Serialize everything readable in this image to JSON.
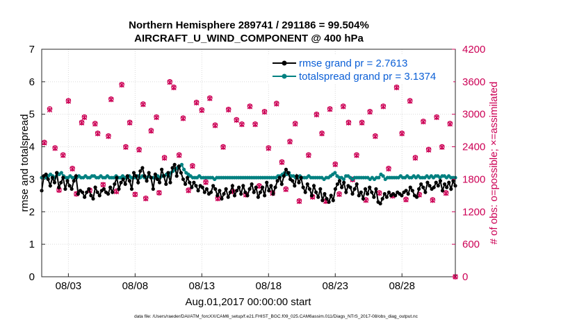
{
  "chart_data": {
    "type": "line",
    "title_line1": "Northern Hemisphere 289741 / 291186 = 99.504%",
    "title_line2": "AIRCRAFT_U_WIND_COMPONENT @ 400 hPa",
    "xlabel": "Aug.01,2017 00:00:00 start",
    "ylabel_left": "rmse and totalspread",
    "ylabel_right": "# of obs: o=possible; ×=assimilated",
    "footnote": "data file: /Users/raeder/DAI/ATM_forcXX/CAM6_setup/f.e21.FHIST_BGC.f09_025.CAM6assim.011/Diags_NTrS_2017-08/obs_diag_output.nc",
    "x_tick_labels": [
      "08/03",
      "08/08",
      "08/13",
      "08/18",
      "08/23",
      "08/28"
    ],
    "x_tick_days": [
      3,
      8,
      13,
      18,
      23,
      28
    ],
    "xlim_days": [
      1,
      32
    ],
    "ylim_left": [
      0,
      7
    ],
    "y_ticks_left": [
      "0",
      "1",
      "2",
      "3",
      "4",
      "5",
      "6",
      "7"
    ],
    "ylim_right": [
      0,
      4200
    ],
    "y_ticks_right": [
      "0",
      "600",
      "1200",
      "1800",
      "2400",
      "3000",
      "3600",
      "4200"
    ],
    "legend": {
      "rmse": "rmse grand pr = 2.7613",
      "spread": "totalspread grand pr = 3.1374"
    },
    "colors": {
      "rmse": "#000000",
      "spread": "#008080",
      "obs": "#cc0055",
      "right_axis": "#cc0055",
      "legend_text": "#0b5fd6"
    },
    "series": [
      {
        "name": "rmse",
        "values": [
          2.65,
          3.1,
          3.15,
          3.0,
          2.8,
          3.05,
          2.9,
          3.2,
          2.75,
          2.9,
          3.05,
          2.7,
          2.95,
          2.8,
          2.7,
          2.95,
          3.1,
          2.55,
          2.65,
          2.6,
          2.45,
          2.6,
          2.7,
          2.5,
          2.4,
          2.75,
          2.6,
          2.5,
          2.65,
          2.7,
          2.6,
          2.55,
          2.75,
          2.6,
          2.85,
          3.05,
          2.7,
          2.9,
          3.0,
          2.85,
          3.1,
          2.95,
          2.7,
          3.2,
          3.1,
          2.9,
          3.25,
          3.35,
          3.1,
          2.95,
          3.2,
          3.05,
          2.7,
          3.15,
          3.0,
          2.9,
          3.3,
          3.1,
          2.85,
          3.2,
          2.9,
          3.35,
          3.45,
          3.1,
          3.4,
          3.2,
          3.0,
          2.85,
          3.05,
          2.9,
          2.75,
          2.9,
          2.8,
          2.65,
          2.8,
          2.75,
          2.6,
          2.7,
          2.55,
          2.6,
          2.8,
          2.7,
          2.5,
          2.65,
          2.4,
          2.55,
          2.7,
          2.45,
          2.6,
          2.8,
          2.5,
          2.65,
          2.75,
          2.55,
          2.8,
          2.6,
          2.5,
          2.7,
          2.85,
          2.6,
          2.75,
          2.45,
          2.6,
          2.75,
          2.5,
          2.9,
          2.65,
          2.8,
          2.55,
          2.75,
          2.95,
          3.05,
          2.85,
          3.1,
          3.3,
          3.2,
          3.0,
          2.95,
          2.8,
          3.1,
          2.9,
          3.05,
          2.75,
          2.6,
          2.85,
          2.7,
          2.5,
          2.8,
          2.6,
          2.45,
          2.7,
          2.35,
          2.55,
          2.4,
          2.3,
          2.5,
          2.35,
          2.7,
          2.85,
          2.95,
          2.75,
          2.9,
          2.6,
          2.8,
          2.75,
          2.55,
          2.7,
          2.85,
          2.5,
          2.6,
          2.4,
          2.7,
          2.55,
          2.75,
          2.6,
          2.45,
          2.7,
          2.3,
          2.25,
          2.4,
          2.55,
          2.45,
          2.6,
          2.5,
          2.55,
          2.5,
          2.6,
          2.55,
          2.5,
          2.6,
          2.65,
          2.55,
          2.75,
          2.65,
          2.5,
          2.45,
          2.7,
          2.85,
          2.75,
          2.6,
          2.9,
          2.8,
          2.7,
          2.75,
          2.9,
          2.8,
          2.95,
          2.65,
          2.85,
          2.75,
          2.9,
          2.7,
          2.95,
          2.8
        ]
      },
      {
        "name": "totalspread",
        "values": [
          3.05,
          3.1,
          3.05,
          3.1,
          3.15,
          3.1,
          3.05,
          3.2,
          3.15,
          3.2,
          3.1,
          3.05,
          3.05,
          3.1,
          3.05,
          3.05,
          3.05,
          3.1,
          3.05,
          3.05,
          3.1,
          3.05,
          3.05,
          3.1,
          3.1,
          3.05,
          3.05,
          3.1,
          3.05,
          3.05,
          3.1,
          3.05,
          3.05,
          3.05,
          3.1,
          3.05,
          3.05,
          3.1,
          3.05,
          3.05,
          3.1,
          3.05,
          3.05,
          3.05,
          3.1,
          3.05,
          3.1,
          3.05,
          3.05,
          3.1,
          3.05,
          3.05,
          3.05,
          3.1,
          3.05,
          3.1,
          3.1,
          3.15,
          3.1,
          3.2,
          3.25,
          3.3,
          3.35,
          3.4,
          3.45,
          3.3,
          3.2,
          3.15,
          3.1,
          3.05,
          3.05,
          3.05,
          3.1,
          3.05,
          3.05,
          3.05,
          3.05,
          3.05,
          3.05,
          3.0,
          3.05,
          3.05,
          3.05,
          3.05,
          3.05,
          3.05,
          3.05,
          3.05,
          3.05,
          3.05,
          3.05,
          3.05,
          3.05,
          3.05,
          3.05,
          3.05,
          3.05,
          3.05,
          3.05,
          3.05,
          3.05,
          3.05,
          3.05,
          3.05,
          3.05,
          3.05,
          3.05,
          3.05,
          3.1,
          3.1,
          3.15,
          3.2,
          3.15,
          3.2,
          3.1,
          3.1,
          3.05,
          3.05,
          3.1,
          3.05,
          3.05,
          3.05,
          3.1,
          3.05,
          3.05,
          3.05,
          3.05,
          3.05,
          3.05,
          3.0,
          3.05,
          3.05,
          3.1,
          3.15,
          3.2,
          3.1,
          3.05,
          3.05,
          3.0,
          3.1,
          3.1,
          3.05,
          3.0,
          3.05,
          3.05,
          3.05,
          3.05,
          3.05,
          3.05,
          3.05,
          3.0,
          3.05,
          3.0,
          3.05,
          3.05,
          3.15,
          3.1,
          3.0,
          3.05,
          3.05,
          3.05,
          3.05,
          3.05,
          3.05,
          3.1,
          3.05,
          3.05,
          3.1,
          3.05,
          3.05,
          3.1,
          3.05,
          3.1,
          3.05,
          3.05,
          3.05,
          3.1,
          3.05,
          3.1,
          3.05,
          3.1,
          3.1,
          3.05,
          3.1,
          3.1,
          3.05,
          3.1,
          3.05,
          3.05,
          3.05
        ]
      },
      {
        "name": "obs_possible",
        "points": [
          [
            1.2,
            2480
          ],
          [
            1.6,
            3100
          ],
          [
            2.0,
            2380
          ],
          [
            2.3,
            1600
          ],
          [
            2.6,
            2250
          ],
          [
            3.0,
            3250
          ],
          [
            3.3,
            2000
          ],
          [
            3.6,
            1530
          ],
          [
            4.0,
            2850
          ],
          [
            4.2,
            2950
          ],
          [
            4.6,
            1600
          ],
          [
            5.0,
            2830
          ],
          [
            5.2,
            2650
          ],
          [
            5.6,
            1700
          ],
          [
            6.0,
            2600
          ],
          [
            6.2,
            3280
          ],
          [
            6.6,
            1580
          ],
          [
            7.0,
            3550
          ],
          [
            7.3,
            2400
          ],
          [
            7.6,
            2850
          ],
          [
            8.0,
            1520
          ],
          [
            8.3,
            2350
          ],
          [
            8.6,
            3190
          ],
          [
            8.8,
            1450
          ],
          [
            9.2,
            2700
          ],
          [
            9.6,
            2950
          ],
          [
            9.8,
            1550
          ],
          [
            10.2,
            2200
          ],
          [
            10.6,
            3600
          ],
          [
            10.9,
            3500
          ],
          [
            11.3,
            2250
          ],
          [
            11.6,
            2930
          ],
          [
            12.0,
            1600
          ],
          [
            12.3,
            2050
          ],
          [
            12.6,
            3220
          ],
          [
            13.0,
            3080
          ],
          [
            13.3,
            1750
          ],
          [
            13.6,
            3300
          ],
          [
            14.0,
            2800
          ],
          [
            14.2,
            1450
          ],
          [
            14.6,
            2400
          ],
          [
            15.0,
            3090
          ],
          [
            15.3,
            1580
          ],
          [
            15.6,
            2900
          ],
          [
            16.0,
            2820
          ],
          [
            16.3,
            1520
          ],
          [
            16.6,
            3150
          ],
          [
            17.0,
            2820
          ],
          [
            17.3,
            1680
          ],
          [
            17.7,
            3050
          ],
          [
            18.0,
            2380
          ],
          [
            18.3,
            1550
          ],
          [
            18.6,
            3200
          ],
          [
            19.0,
            2120
          ],
          [
            19.3,
            1620
          ],
          [
            19.6,
            2500
          ],
          [
            20.0,
            2830
          ],
          [
            20.3,
            1400
          ],
          [
            20.6,
            3650
          ],
          [
            21.0,
            2250
          ],
          [
            21.3,
            1480
          ],
          [
            21.6,
            3000
          ],
          [
            22.0,
            2650
          ],
          [
            22.3,
            1400
          ],
          [
            22.6,
            3100
          ],
          [
            23.0,
            2080
          ],
          [
            23.3,
            1530
          ],
          [
            23.6,
            3150
          ],
          [
            24.0,
            2850
          ],
          [
            24.3,
            1800
          ],
          [
            24.6,
            2250
          ],
          [
            25.0,
            2850
          ],
          [
            25.3,
            1420
          ],
          [
            25.6,
            3050
          ],
          [
            26.0,
            2600
          ],
          [
            26.3,
            1550
          ],
          [
            26.6,
            3150
          ],
          [
            27.0,
            2000
          ],
          [
            27.3,
            1500
          ],
          [
            27.6,
            3500
          ],
          [
            28.0,
            2650
          ],
          [
            28.3,
            1430
          ],
          [
            28.6,
            3250
          ],
          [
            29.0,
            2200
          ],
          [
            29.3,
            1520
          ],
          [
            29.6,
            2870
          ],
          [
            30.0,
            2350
          ],
          [
            30.3,
            1420
          ],
          [
            30.6,
            2950
          ],
          [
            31.0,
            2400
          ],
          [
            31.3,
            1550
          ],
          [
            31.6,
            2830
          ],
          [
            32.0,
            0
          ]
        ]
      },
      {
        "name": "obs_assimilated",
        "points": [
          [
            1.2,
            2470
          ],
          [
            1.6,
            3080
          ],
          [
            2.0,
            2370
          ],
          [
            2.3,
            1600
          ],
          [
            2.6,
            2240
          ],
          [
            3.0,
            3240
          ],
          [
            3.3,
            1990
          ],
          [
            3.6,
            1530
          ],
          [
            4.0,
            2840
          ],
          [
            4.2,
            2940
          ],
          [
            4.6,
            1590
          ],
          [
            5.0,
            2820
          ],
          [
            5.2,
            2640
          ],
          [
            5.6,
            1700
          ],
          [
            6.0,
            2590
          ],
          [
            6.2,
            3270
          ],
          [
            6.6,
            1570
          ],
          [
            7.0,
            3540
          ],
          [
            7.3,
            2390
          ],
          [
            7.6,
            2840
          ],
          [
            8.0,
            1520
          ],
          [
            8.3,
            2340
          ],
          [
            8.6,
            3180
          ],
          [
            8.8,
            1440
          ],
          [
            9.2,
            2690
          ],
          [
            9.6,
            2940
          ],
          [
            9.8,
            1550
          ],
          [
            10.2,
            2190
          ],
          [
            10.6,
            3590
          ],
          [
            10.9,
            3490
          ],
          [
            11.3,
            2240
          ],
          [
            11.6,
            2920
          ],
          [
            12.0,
            1590
          ],
          [
            12.3,
            2040
          ],
          [
            12.6,
            3210
          ],
          [
            13.0,
            3070
          ],
          [
            13.3,
            1740
          ],
          [
            13.6,
            3290
          ],
          [
            14.0,
            2790
          ],
          [
            14.2,
            1440
          ],
          [
            14.6,
            2390
          ],
          [
            15.0,
            3080
          ],
          [
            15.3,
            1570
          ],
          [
            15.6,
            2890
          ],
          [
            16.0,
            2810
          ],
          [
            16.3,
            1510
          ],
          [
            16.6,
            3140
          ],
          [
            17.0,
            2810
          ],
          [
            17.3,
            1670
          ],
          [
            17.7,
            3040
          ],
          [
            18.0,
            2370
          ],
          [
            18.3,
            1540
          ],
          [
            18.6,
            3190
          ],
          [
            19.0,
            2110
          ],
          [
            19.3,
            1610
          ],
          [
            19.6,
            2490
          ],
          [
            20.0,
            2820
          ],
          [
            20.3,
            1390
          ],
          [
            20.6,
            3640
          ],
          [
            21.0,
            2240
          ],
          [
            21.3,
            1470
          ],
          [
            21.6,
            2990
          ],
          [
            22.0,
            2640
          ],
          [
            22.3,
            1390
          ],
          [
            22.6,
            3090
          ],
          [
            23.0,
            2070
          ],
          [
            23.3,
            1520
          ],
          [
            23.6,
            3140
          ],
          [
            24.0,
            2840
          ],
          [
            24.3,
            1790
          ],
          [
            24.6,
            2240
          ],
          [
            25.0,
            2840
          ],
          [
            25.3,
            1410
          ],
          [
            25.6,
            3040
          ],
          [
            26.0,
            2590
          ],
          [
            26.3,
            1540
          ],
          [
            26.6,
            3140
          ],
          [
            27.0,
            1990
          ],
          [
            27.3,
            1490
          ],
          [
            27.6,
            3490
          ],
          [
            28.0,
            2640
          ],
          [
            28.3,
            1420
          ],
          [
            28.6,
            3240
          ],
          [
            29.0,
            2190
          ],
          [
            29.3,
            1510
          ],
          [
            29.6,
            2860
          ],
          [
            30.0,
            2340
          ],
          [
            30.3,
            1410
          ],
          [
            30.6,
            2940
          ],
          [
            31.0,
            2390
          ],
          [
            31.3,
            1540
          ],
          [
            31.6,
            2820
          ],
          [
            32.0,
            0
          ]
        ]
      }
    ]
  }
}
